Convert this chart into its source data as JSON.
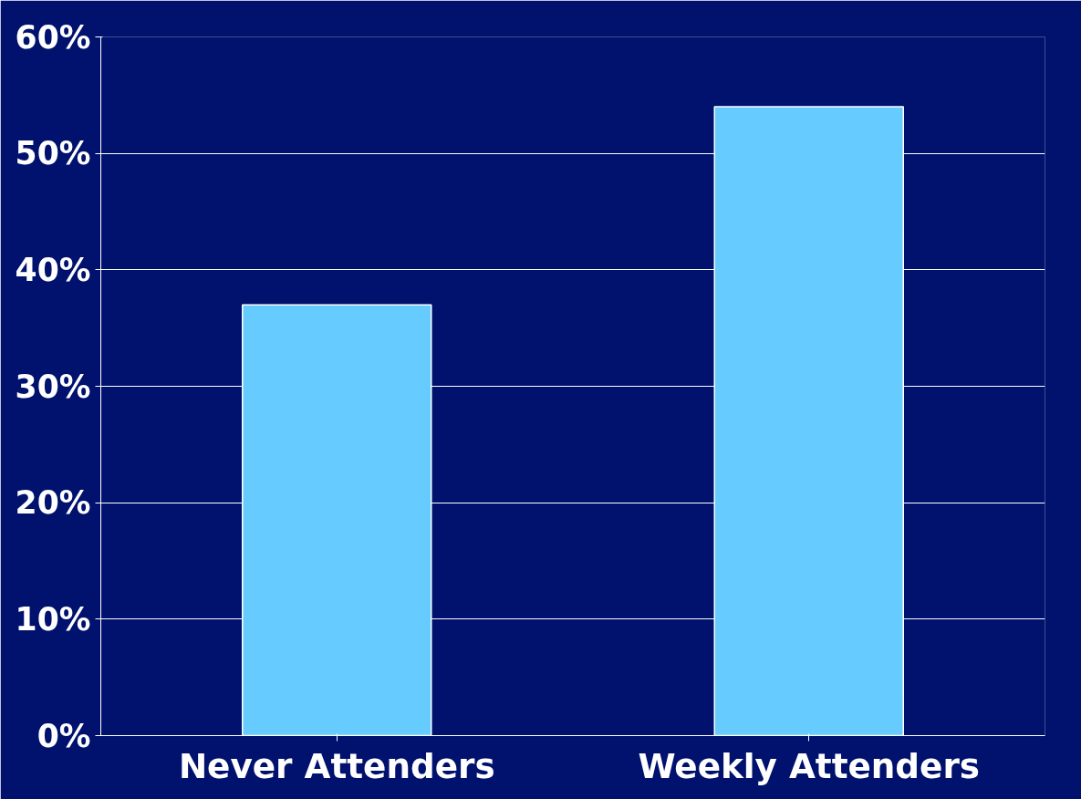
{
  "chart_data": {
    "type": "bar",
    "categories": [
      "Never Attenders",
      "Weekly Attenders"
    ],
    "values": [
      37,
      54
    ],
    "color": "#66ccff",
    "ylim": [
      0,
      60
    ],
    "yticks": [
      {
        "value": 0,
        "label": "0%"
      },
      {
        "value": 10,
        "label": "10%"
      },
      {
        "value": 20,
        "label": "20%"
      },
      {
        "value": 30,
        "label": "30%"
      },
      {
        "value": 40,
        "label": "40%"
      },
      {
        "value": 50,
        "label": "50%"
      },
      {
        "value": 60,
        "label": "60%"
      }
    ],
    "grid": "y"
  }
}
